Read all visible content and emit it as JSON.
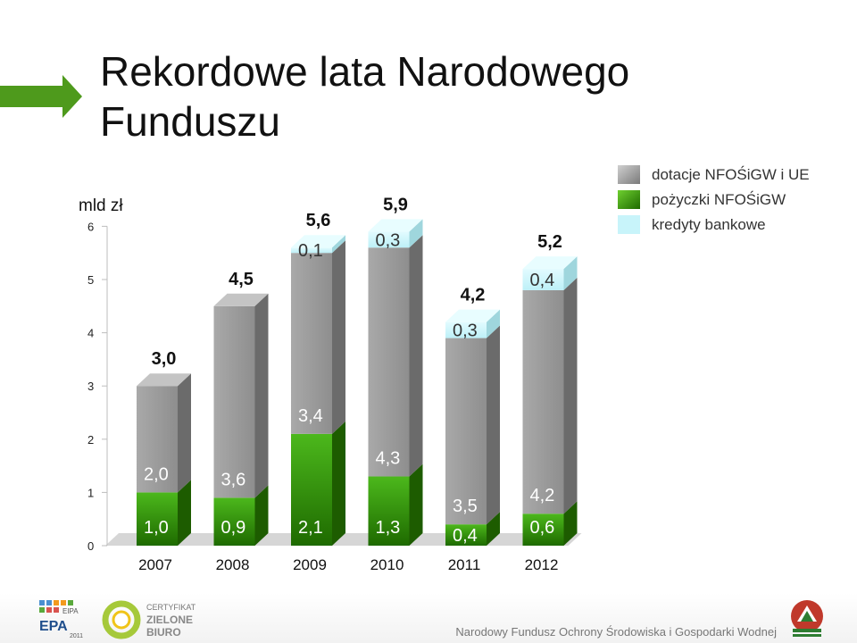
{
  "slide": {
    "title_line1": "Rekordowe lata Narodowego",
    "title_line2": "Funduszu"
  },
  "chart_data": {
    "type": "bar",
    "stacked": true,
    "unit_label": "mld zł",
    "categories": [
      "2007",
      "2008",
      "2009",
      "2010",
      "2011",
      "2012"
    ],
    "ylim": [
      0,
      6
    ],
    "yticks": [
      "0",
      "1",
      "2",
      "3",
      "4",
      "5",
      "6"
    ],
    "series": [
      {
        "name": "pożyczki NFOŚiGW",
        "values": [
          1.0,
          0.9,
          2.1,
          1.3,
          0.4,
          0.6
        ],
        "labels": [
          "1,0",
          "0,9",
          "2,1",
          "1,3",
          "0,4",
          "0,6"
        ],
        "color": "#2e8a00"
      },
      {
        "name": "dotacje NFOŚiGW i UE",
        "values": [
          2.0,
          3.6,
          3.4,
          4.3,
          3.5,
          4.2
        ],
        "labels": [
          "2,0",
          "3,6",
          "3,4",
          "4,3",
          "3,5",
          "4,2"
        ],
        "color": "#9a9a9a"
      },
      {
        "name": "kredyty bankowe",
        "values": [
          0,
          0,
          0.1,
          0.3,
          0.3,
          0.4
        ],
        "labels": [
          "",
          "",
          "0,1",
          "0,3",
          "0,3",
          "0,4"
        ],
        "color": "#c8f4fa"
      }
    ],
    "totals": [
      "3,0",
      "4,5",
      "5,6",
      "5,9",
      "4,2",
      "5,2"
    ],
    "legend": {
      "placement": "top-right",
      "items": [
        "dotacje NFOŚiGW i UE",
        "pożyczki NFOŚiGW",
        "kredyty bankowe"
      ]
    },
    "grid": false
  },
  "footer": {
    "text": "Narodowy Fundusz Ochrony Środowiska i Gospodarki Wodnej",
    "logos": [
      {
        "icon": "eipa-epa-logo",
        "line1": "EIPA",
        "line2": "EPA",
        "line3": "2011"
      },
      {
        "icon": "certyfikat-logo",
        "line1": "CERTYFIKAT",
        "line2": "ZIELONE",
        "line3": "BIURO"
      },
      {
        "icon": "nfosigw-logo"
      }
    ]
  }
}
